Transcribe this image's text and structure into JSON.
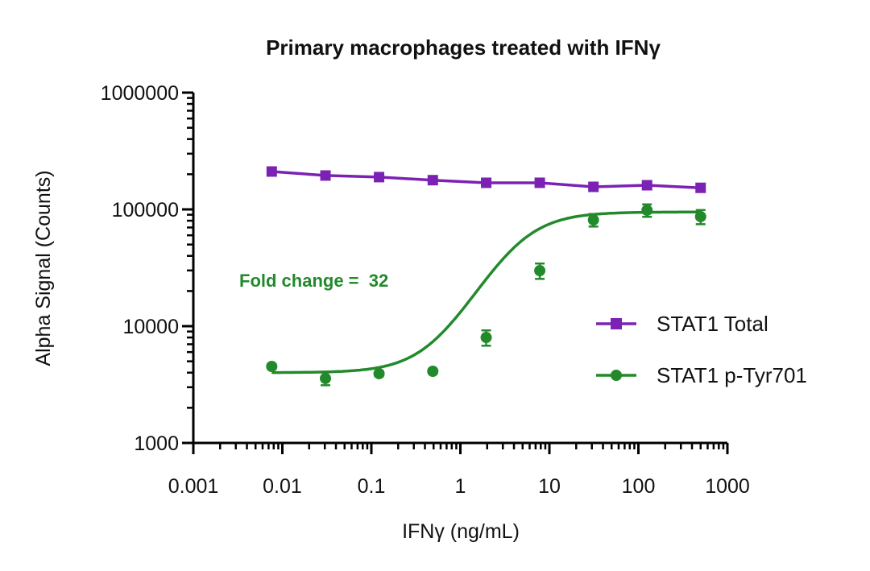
{
  "chart_data": {
    "type": "line",
    "title": "Primary macrophages treated with IFNγ",
    "xlabel": "IFNγ (ng/mL)",
    "ylabel": "Alpha Signal (Counts)",
    "xscale": "log",
    "yscale": "log",
    "xlim": [
      0.001,
      1000
    ],
    "ylim": [
      1000,
      1000000
    ],
    "xticks": [
      "0.001",
      "0.01",
      "0.1",
      "1",
      "10",
      "100",
      "1000"
    ],
    "yticks": [
      "1000",
      "10000",
      "100000",
      "1000000"
    ],
    "grid": false,
    "legend_position": "right",
    "annotation": "Fold change =  32",
    "x": [
      0.0076,
      0.0305,
      0.122,
      0.49,
      1.95,
      7.8,
      31.25,
      125,
      500
    ],
    "series": [
      {
        "name": "STAT1 Total",
        "color": "#7b22b4",
        "marker": "square",
        "values": [
          211000,
          195000,
          189000,
          178000,
          169000,
          169000,
          156000,
          161000,
          153000
        ],
        "errors": [
          5000,
          5000,
          5000,
          8000,
          5000,
          5000,
          5000,
          7000,
          5000
        ],
        "fit": {
          "type": "line"
        }
      },
      {
        "name": "STAT1 p-Tyr701",
        "color": "#238a2c",
        "marker": "circle",
        "values": [
          4520,
          3570,
          3920,
          4110,
          8000,
          29900,
          81300,
          98400,
          86700
        ],
        "errors": [
          200,
          450,
          200,
          200,
          1200,
          4500,
          10000,
          12000,
          12000
        ],
        "fit": {
          "type": "4PL",
          "bottom": 4000,
          "top": 95000,
          "ec50": 4.3,
          "hill": 1.5
        }
      }
    ]
  }
}
